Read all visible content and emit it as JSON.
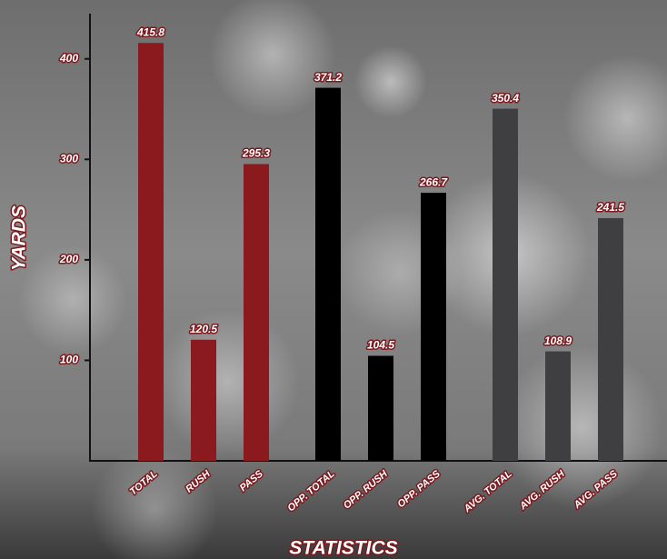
{
  "chart_data": {
    "type": "bar",
    "x_label": "STATISTICS",
    "y_label": "YARDS",
    "categories": [
      "TOTAL",
      "RUSH",
      "PASS",
      "OPP. TOTAL",
      "OPP. RUSH",
      "OPP. PASS",
      "AVG. TOTAL",
      "AVG. RUSH",
      "AVG. PASS"
    ],
    "values": [
      415.8,
      120.5,
      295.3,
      371.2,
      104.5,
      266.7,
      350.4,
      108.9,
      241.5
    ],
    "colors": [
      "#8b1a1e",
      "#8b1a1e",
      "#8b1a1e",
      "#000000",
      "#000000",
      "#000000",
      "#3f3f41",
      "#3f3f41",
      "#3f3f41"
    ],
    "ylim": [
      0,
      445
    ],
    "yticks": [
      100,
      200,
      300,
      400
    ]
  }
}
